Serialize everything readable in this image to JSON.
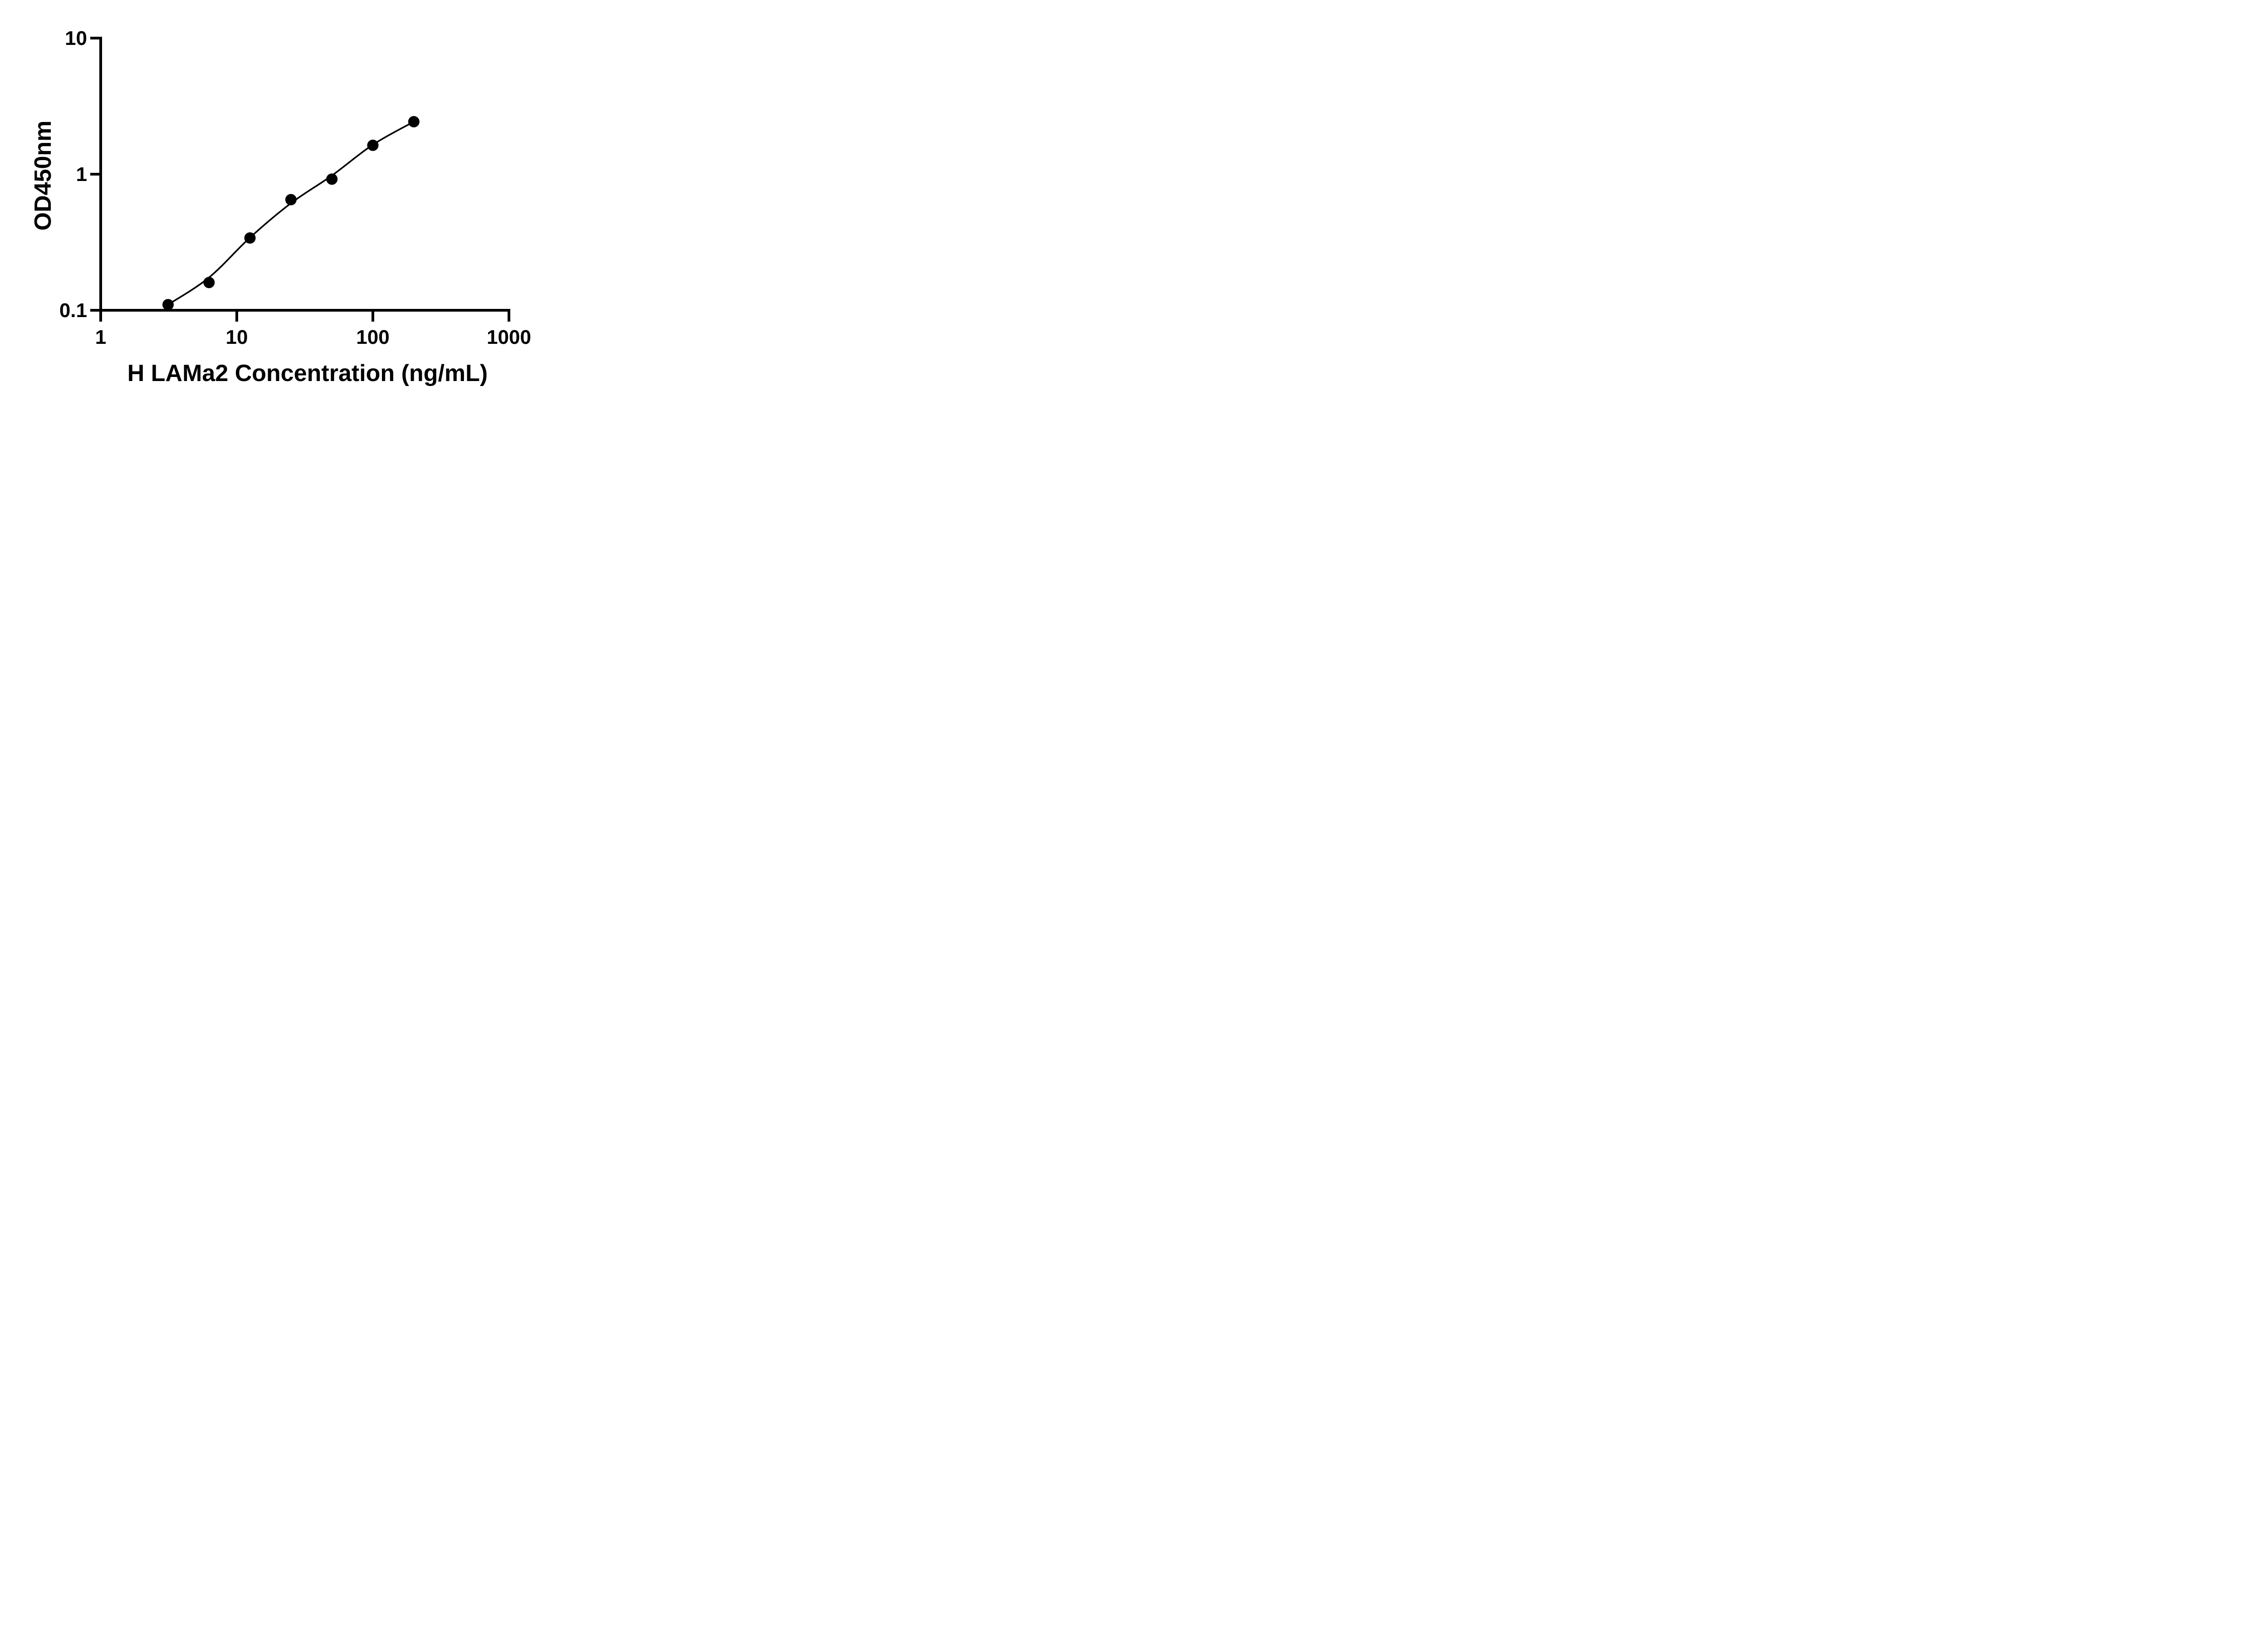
{
  "figure": {
    "x_axis_title": "H LAMa2 Concentration (ng/mL)",
    "y_axis_title": "OD450nm"
  },
  "chart_data": {
    "type": "scatter",
    "title": "",
    "xlabel": "H LAMa2 Concentration (ng/mL)",
    "ylabel": "OD450nm",
    "x_scale": "log",
    "y_scale": "log",
    "xlim": [
      1,
      1000
    ],
    "ylim": [
      0.1,
      10
    ],
    "x_ticks": [
      1,
      10,
      100,
      1000
    ],
    "x_tick_labels": [
      "1",
      "10",
      "100",
      "1000"
    ],
    "y_ticks": [
      10,
      1,
      0.1
    ],
    "y_tick_labels": [
      "10",
      "1",
      "0.1"
    ],
    "grid": false,
    "legend": null,
    "marker": {
      "shape": "circle",
      "color": "#000000"
    },
    "line_color": "#000000",
    "points": {
      "x": [
        3.125,
        6.25,
        12.5,
        25,
        50,
        100,
        200
      ],
      "y": [
        0.11,
        0.16,
        0.34,
        0.65,
        0.92,
        1.63,
        2.43
      ]
    },
    "fit_curve": {
      "x": [
        3.125,
        6.25,
        12.5,
        25,
        50,
        100,
        200
      ],
      "y": [
        0.11,
        0.174,
        0.342,
        0.612,
        0.977,
        1.647,
        2.43
      ]
    }
  }
}
